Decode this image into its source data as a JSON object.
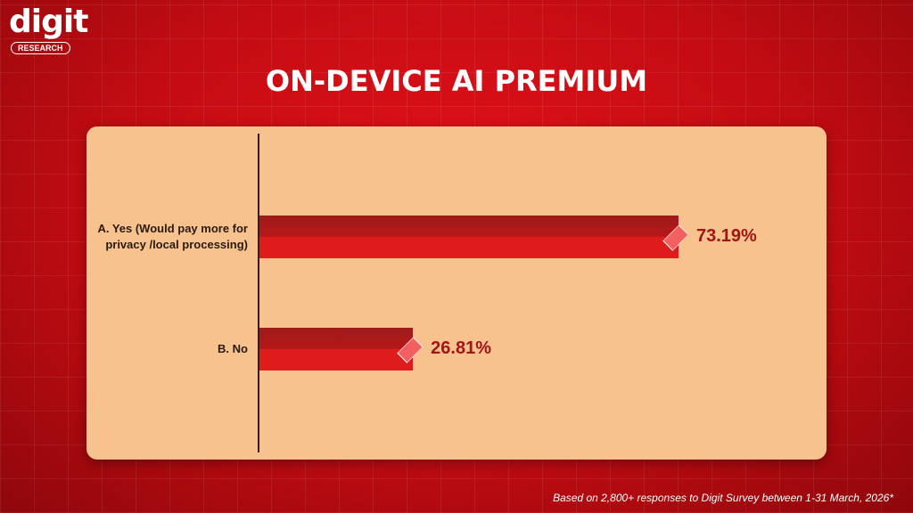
{
  "brand": {
    "name": "digit",
    "tagline": "RESEARCH"
  },
  "chart_data": {
    "type": "bar",
    "orientation": "horizontal",
    "title": "ON-DEVICE AI PREMIUM",
    "categories": [
      "A. Yes (Would pay more for privacy /local processing)",
      "B. No"
    ],
    "values": [
      73.19,
      26.81
    ],
    "value_labels": [
      "73.19%",
      "26.81%"
    ],
    "color": "#e01b1b"
  },
  "footnote": "Based on 2,800+ responses to Digit Survey between 1-31 March, 2026*"
}
